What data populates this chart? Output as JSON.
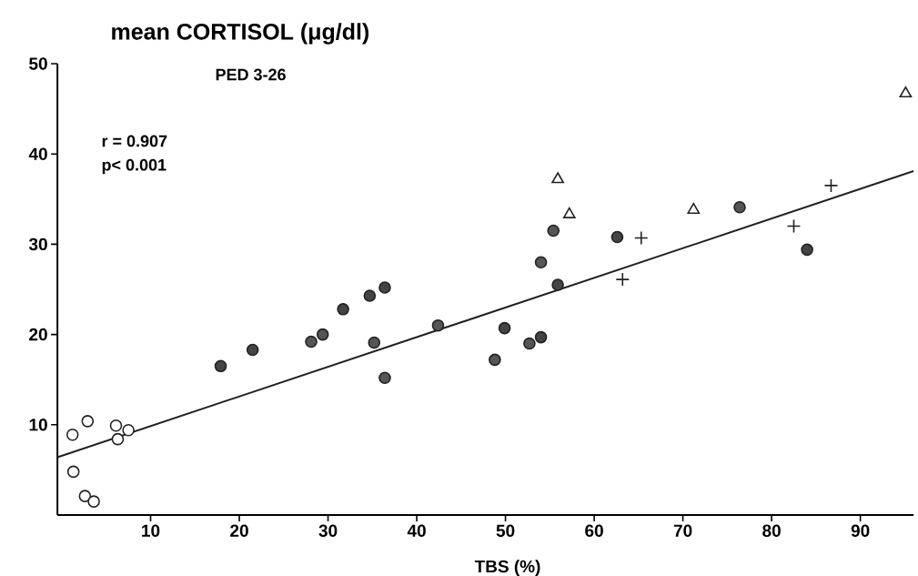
{
  "chart_data": {
    "type": "scatter",
    "ylabel": "mean CORTISOL (μg/dl)",
    "xlabel": "TBS (%)",
    "annotations": [
      "PED 3-26",
      "r = 0.907",
      "p< 0.001"
    ],
    "xlim": [
      -0.5,
      96
    ],
    "ylim": [
      0,
      50
    ],
    "xticks": [
      10,
      20,
      30,
      40,
      50,
      60,
      70,
      80,
      90
    ],
    "yticks": [
      10,
      20,
      30,
      40,
      50
    ],
    "grid": false,
    "series": [
      {
        "marker": "circle",
        "color": "#ffffff",
        "x": [
          1.2,
          2.9,
          6.1,
          6.3,
          7.5,
          1.3,
          2.6,
          3.6
        ],
        "values": [
          8.9,
          10.4,
          9.9,
          8.4,
          9.4,
          4.8,
          2.1,
          1.5
        ]
      },
      {
        "marker": "circle",
        "color": "#444444",
        "x": [
          17.9,
          21.5,
          31.7,
          34.7,
          36.4,
          49.9,
          54.0,
          55.9,
          62.6,
          84.0
        ],
        "values": [
          16.5,
          18.3,
          22.8,
          24.3,
          25.2,
          20.7,
          19.7,
          25.5,
          30.8,
          29.4
        ]
      },
      {
        "marker": "circle",
        "color": "#555555",
        "x": [
          28.1,
          29.4,
          35.2,
          36.4,
          42.4,
          48.8,
          52.7,
          54.0,
          55.4,
          76.4
        ],
        "values": [
          19.2,
          20.0,
          19.1,
          15.2,
          21.0,
          17.2,
          19.0,
          28.0,
          31.5,
          34.1
        ]
      },
      {
        "marker": "triangle",
        "color": "#ffffff",
        "x": [
          55.9,
          57.2,
          71.2,
          95.1
        ],
        "values": [
          37.2,
          33.3,
          33.8,
          46.7
        ]
      },
      {
        "marker": "cross",
        "color": "#222222",
        "x": [
          65.3,
          63.2,
          82.5,
          86.7
        ],
        "values": [
          30.7,
          26.1,
          32.0,
          36.5
        ]
      },
      {
        "type": "line",
        "color": "#222222",
        "x": [
          -0.5,
          96
        ],
        "values": [
          6.4,
          38.1
        ]
      }
    ]
  }
}
